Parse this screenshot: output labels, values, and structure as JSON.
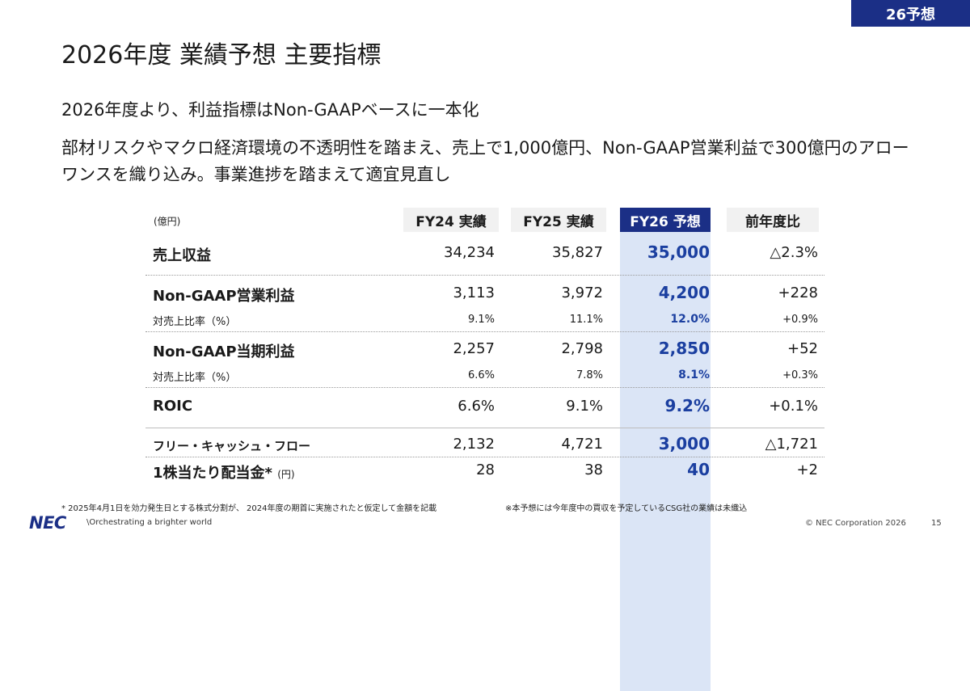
{
  "badge": "26予想",
  "title": "2026年度 業績予想 主要指標",
  "subtitle1": "2026年度より、利益指標はNon-GAAPベースに一本化",
  "subtitle2": "部材リスクやマクロ経済環境の不透明性を踏まえ、売上で1,000億円、Non-GAAP営業利益で300億円のアローワンスを織り込み。事業進捗を踏まえて適宜見直し",
  "table": {
    "unit": "(億円)",
    "headers": {
      "fy24": "FY24 実績",
      "fy25": "FY25 実績",
      "fy26": "FY26 予想",
      "yoy": "前年度比"
    },
    "rows": [
      {
        "label": "売上収益",
        "fy24": "34,234",
        "fy25": "35,827",
        "fy26": "35,000",
        "yoy": "△2.3%"
      },
      {
        "label": "Non-GAAP営業利益",
        "fy24": "3,113",
        "fy25": "3,972",
        "fy26": "4,200",
        "yoy": "+228"
      },
      {
        "label": "対売上比率（%）",
        "fy24": "9.1%",
        "fy25": "11.1%",
        "fy26": "12.0%",
        "yoy": "+0.9%"
      },
      {
        "label": "Non-GAAP当期利益",
        "fy24": "2,257",
        "fy25": "2,798",
        "fy26": "2,850",
        "yoy": "+52"
      },
      {
        "label": "対売上比率（%）",
        "fy24": "6.6%",
        "fy25": "7.8%",
        "fy26": "8.1%",
        "yoy": "+0.3%"
      },
      {
        "label": "ROIC",
        "fy24": "6.6%",
        "fy25": "9.1%",
        "fy26": "9.2%",
        "yoy": "+0.1%"
      },
      {
        "label": "フリー・キャッシュ・フロー",
        "fy24": "2,132",
        "fy25": "4,721",
        "fy26": "3,000",
        "yoy": "△1,721"
      },
      {
        "label": "1株当たり配当金*",
        "label_unit": "(円)",
        "fy24": "28",
        "fy25": "38",
        "fy26": "40",
        "yoy": "+2"
      }
    ]
  },
  "notes": {
    "left": "* 2025年4月1日を効力発生日とする株式分割が、 2024年度の期首に実施されたと仮定して金額を記載",
    "right": "※本予想には今年度中の買収を予定しているCSG社の業績は未織込"
  },
  "footer": {
    "logo": "NEC",
    "tagline": "\\Orchestrating a brighter world",
    "copyright": "© NEC Corporation 2026",
    "page": "15"
  },
  "colors": {
    "brand": "#1b2f86",
    "forecast_fill": "#dbe5f6",
    "forecast_text": "#1b3fa0"
  }
}
